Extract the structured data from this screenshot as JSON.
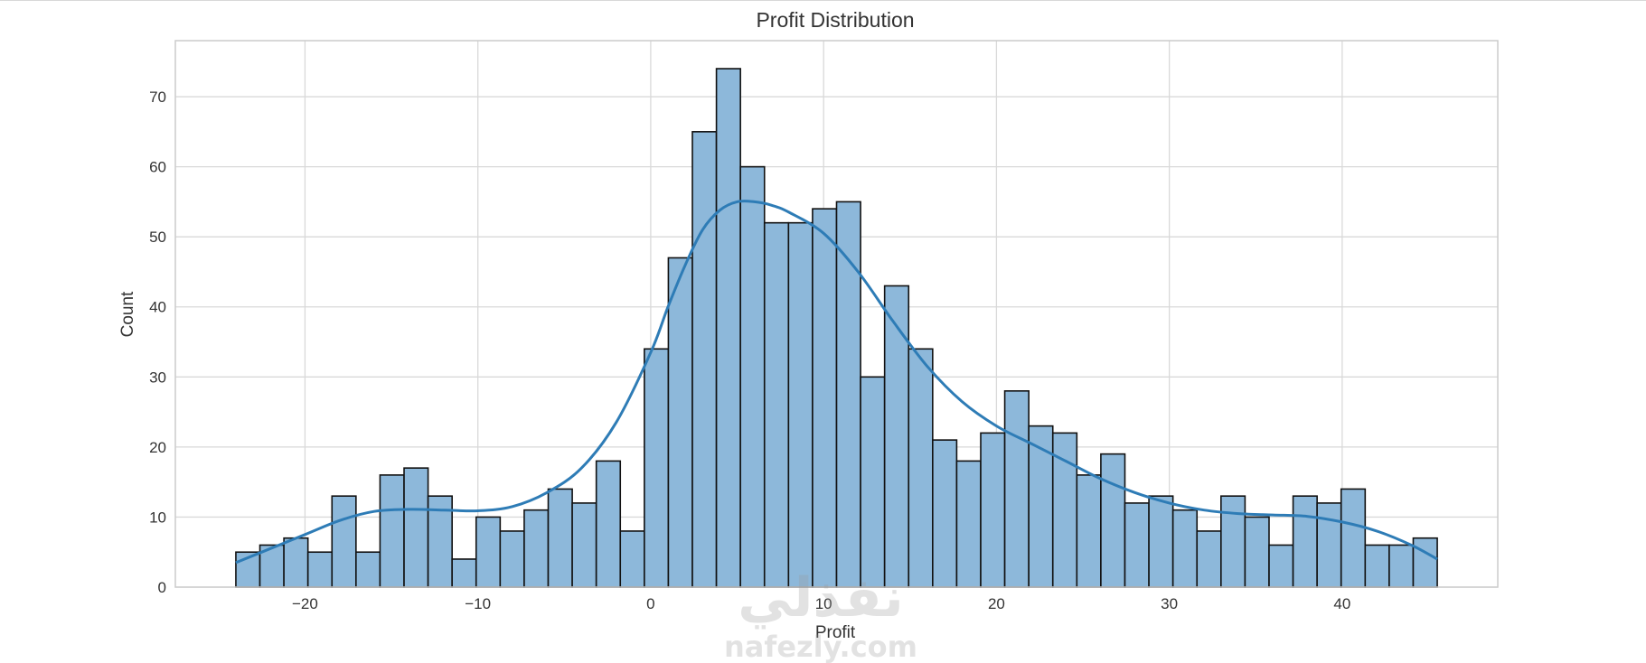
{
  "chart_data": {
    "type": "bar",
    "title": "Profit Distribution",
    "xlabel": "Profit",
    "ylabel": "Count",
    "xlim": [
      -27.5,
      49
    ],
    "ylim": [
      0,
      78
    ],
    "xticks": [
      -20,
      -10,
      0,
      10,
      20,
      30,
      40
    ],
    "xtick_labels": [
      "−20",
      "−10",
      "0",
      "10",
      "20",
      "30",
      "40"
    ],
    "yticks": [
      0,
      10,
      20,
      30,
      40,
      50,
      60,
      70
    ],
    "grid": true,
    "bin_start": -24.0,
    "bin_width": 1.39,
    "counts": [
      5,
      6,
      7,
      5,
      13,
      5,
      16,
      17,
      13,
      4,
      10,
      8,
      11,
      14,
      12,
      18,
      8,
      34,
      47,
      65,
      74,
      60,
      52,
      52,
      54,
      55,
      30,
      43,
      34,
      21,
      18,
      22,
      28,
      23,
      22,
      16,
      19,
      12,
      13,
      11,
      8,
      13,
      10,
      6,
      13,
      12,
      14,
      6,
      6,
      7
    ],
    "series": [
      {
        "name": "",
        "kind": "histogram",
        "color": "#8db8da",
        "edge_color": "#111111"
      },
      {
        "name": "",
        "kind": "kde",
        "color": "#2e7cb6"
      }
    ],
    "kde": {
      "x": [
        -24,
        -22,
        -20,
        -18,
        -16,
        -14,
        -12,
        -10,
        -8,
        -6,
        -4,
        -2,
        0,
        1,
        2,
        3,
        4,
        5,
        6,
        7,
        8,
        10,
        12,
        14,
        16,
        18,
        20,
        22,
        24,
        26,
        28,
        30,
        32,
        34,
        36,
        38,
        40,
        42,
        44,
        45.5
      ],
      "y": [
        3.5,
        5.5,
        7.5,
        9.5,
        10.8,
        11.1,
        11,
        10.9,
        11.5,
        13.5,
        17,
        23.5,
        33.5,
        40,
        46,
        51,
        53.8,
        55,
        55,
        54.5,
        53.5,
        50.5,
        45,
        38,
        31.5,
        26.5,
        23,
        20.5,
        18,
        15.5,
        13.5,
        12,
        11,
        10.5,
        10.3,
        10.1,
        9.3,
        8,
        6,
        4
      ]
    }
  },
  "watermark": {
    "script": "نفذلي",
    "latin": "nafezly.com"
  }
}
